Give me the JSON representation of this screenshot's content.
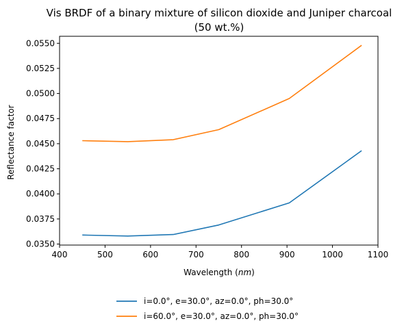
{
  "chart_data": {
    "type": "line",
    "title_lines": [
      "Vis BRDF of a binary mixture of silicon dioxide and Juniper charcoal",
      "(50 wt.%)"
    ],
    "xlabel": "Wavelength (",
    "xlabel_italic": "nm",
    "xlabel_suffix": ")",
    "ylabel": "Reflectance factor",
    "xlim": [
      400,
      1100
    ],
    "ylim": [
      0.0349,
      0.0557
    ],
    "x_ticks": [
      {
        "value": 400,
        "label": "400"
      },
      {
        "value": 500,
        "label": "500"
      },
      {
        "value": 600,
        "label": "600"
      },
      {
        "value": 700,
        "label": "700"
      },
      {
        "value": 800,
        "label": "800"
      },
      {
        "value": 900,
        "label": "900"
      },
      {
        "value": 1000,
        "label": "1000"
      },
      {
        "value": 1100,
        "label": "1100"
      }
    ],
    "y_ticks": [
      {
        "value": 0.035,
        "label": "0.0350"
      },
      {
        "value": 0.0375,
        "label": "0.0375"
      },
      {
        "value": 0.04,
        "label": "0.0400"
      },
      {
        "value": 0.0425,
        "label": "0.0425"
      },
      {
        "value": 0.045,
        "label": "0.0450"
      },
      {
        "value": 0.0475,
        "label": "0.0475"
      },
      {
        "value": 0.05,
        "label": "0.0500"
      },
      {
        "value": 0.0525,
        "label": "0.0525"
      },
      {
        "value": 0.055,
        "label": "0.0550"
      }
    ],
    "grid": false,
    "legend_placement": "below",
    "x": [
      450,
      550,
      650,
      750,
      905,
      1064
    ],
    "series": [
      {
        "name": "i=0.0°, e=30.0°, az=0.0°, ph=30.0°",
        "color": "#1f77b4",
        "values": [
          0.0359,
          0.0358,
          0.03595,
          0.0369,
          0.0391,
          0.0443
        ]
      },
      {
        "name": "i=60.0°, e=30.0°, az=0.0°, ph=30.0°",
        "color": "#ff7f0e",
        "values": [
          0.0453,
          0.0452,
          0.0454,
          0.0464,
          0.0495,
          0.0548
        ]
      }
    ]
  }
}
